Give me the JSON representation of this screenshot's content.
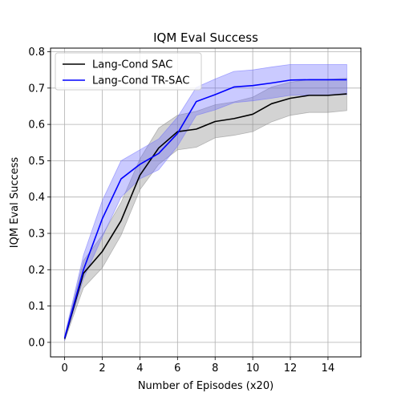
{
  "chart_data": {
    "type": "line",
    "title": "IQM Eval Success",
    "xlabel": "Number of Episodes (x20)",
    "ylabel": "IQM Eval Success",
    "xlim": [
      -0.75,
      15.75
    ],
    "ylim": [
      -0.04,
      0.81
    ],
    "xticks": [
      0,
      2,
      4,
      6,
      8,
      10,
      12,
      14
    ],
    "xtick_labels": [
      "0",
      "2",
      "4",
      "6",
      "8",
      "10",
      "12",
      "14"
    ],
    "yticks": [
      0.0,
      0.1,
      0.2,
      0.3,
      0.4,
      0.5,
      0.6,
      0.7,
      0.8
    ],
    "ytick_labels": [
      "0.0",
      "0.1",
      "0.2",
      "0.3",
      "0.4",
      "0.5",
      "0.6",
      "0.7",
      "0.8"
    ],
    "grid": true,
    "legend_position": "top-left",
    "x": [
      0,
      1,
      2,
      3,
      4,
      5,
      6,
      7,
      8,
      9,
      10,
      11,
      12,
      13,
      14,
      15
    ],
    "series": [
      {
        "name": "Lang-Cond SAC",
        "color": "#000000",
        "band_color": "#808080",
        "values": [
          0.01,
          0.19,
          0.25,
          0.335,
          0.46,
          0.535,
          0.58,
          0.587,
          0.608,
          0.616,
          0.628,
          0.657,
          0.672,
          0.68,
          0.68,
          0.684
        ],
        "lower": [
          0.005,
          0.15,
          0.205,
          0.295,
          0.42,
          0.49,
          0.53,
          0.537,
          0.563,
          0.57,
          0.58,
          0.607,
          0.625,
          0.633,
          0.633,
          0.638
        ],
        "upper": [
          0.015,
          0.225,
          0.295,
          0.385,
          0.505,
          0.59,
          0.625,
          0.636,
          0.654,
          0.662,
          0.675,
          0.703,
          0.716,
          0.724,
          0.724,
          0.727
        ]
      },
      {
        "name": "Lang-Cond TR-SAC",
        "color": "#0000ff",
        "band_color": "#6666ff",
        "values": [
          0.012,
          0.2,
          0.34,
          0.45,
          0.49,
          0.52,
          0.575,
          0.663,
          0.682,
          0.703,
          0.707,
          0.714,
          0.722,
          0.723,
          0.723,
          0.723
        ],
        "lower": [
          0.005,
          0.175,
          0.29,
          0.4,
          0.45,
          0.475,
          0.54,
          0.625,
          0.64,
          0.66,
          0.665,
          0.672,
          0.68,
          0.681,
          0.681,
          0.682
        ],
        "upper": [
          0.018,
          0.24,
          0.39,
          0.5,
          0.53,
          0.56,
          0.62,
          0.702,
          0.725,
          0.746,
          0.75,
          0.758,
          0.765,
          0.765,
          0.765,
          0.765
        ]
      }
    ]
  }
}
